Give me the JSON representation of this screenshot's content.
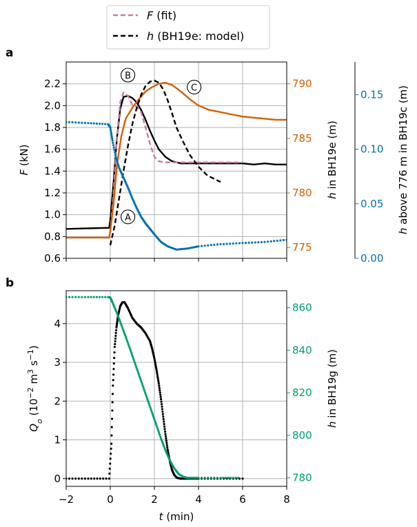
{
  "legend": {
    "items": [
      {
        "label_main": "F",
        "label_rest": " (fit)",
        "color": "#cc79a7",
        "style": "dashed"
      },
      {
        "label_main": "h",
        "label_rest": " (BH19e: model)",
        "color": "#000000",
        "style": "dashed"
      }
    ]
  },
  "colors": {
    "orange": "#d55e00",
    "blue": "#0072b2",
    "green": "#009e73",
    "pink": "#cc79a7",
    "black": "#000000",
    "grid": "#b0b0b0"
  },
  "chart_data": [
    {
      "panel_label": "a",
      "type": "line",
      "xlim": [
        -2,
        8
      ],
      "grid": true,
      "axes": {
        "left": {
          "label_main": "F",
          "label_rest": " (kN)",
          "ylim": [
            0.6,
            2.4
          ],
          "ticks": [
            "0.6",
            "0.8",
            "1.0",
            "1.2",
            "1.4",
            "1.6",
            "1.8",
            "2.0",
            "2.2"
          ]
        },
        "right1": {
          "label_main": "h",
          "label_rest": " in BH19e (m)",
          "ylim": [
            774,
            792
          ],
          "ticks": [
            "775",
            "780",
            "785",
            "790"
          ],
          "color": "#d55e00"
        },
        "right2": {
          "label_main": "h",
          "label_rest": " above 776 m in BH19c  (m)",
          "ylim": [
            0.0,
            0.18
          ],
          "ticks": [
            "0.00",
            "0.05",
            "0.10",
            "0.15"
          ],
          "color": "#0072b2"
        }
      },
      "annotations": [
        {
          "text": "A",
          "x": 0.8,
          "y": 0.98
        },
        {
          "text": "B",
          "x": 0.8,
          "y": 2.28
        },
        {
          "text": "C",
          "x": 3.8,
          "y": 2.17
        }
      ],
      "series": [
        {
          "name": "F",
          "axis": "left",
          "color": "#000000",
          "kind": "measured",
          "x": [
            -2,
            -0.05,
            0.0,
            0.15,
            0.3,
            0.45,
            0.6,
            0.8,
            1.0,
            1.2,
            1.4,
            1.6,
            1.8,
            2.0,
            2.2,
            2.5,
            2.8,
            3.2,
            3.6,
            4.0,
            4.5,
            5.0,
            5.5,
            6.0,
            6.5,
            7.0,
            7.5,
            8.0
          ],
          "y": [
            0.87,
            0.88,
            0.95,
            1.3,
            1.7,
            1.97,
            2.08,
            2.09,
            2.07,
            2.03,
            1.96,
            1.87,
            1.77,
            1.68,
            1.6,
            1.53,
            1.49,
            1.47,
            1.47,
            1.47,
            1.47,
            1.47,
            1.47,
            1.47,
            1.46,
            1.47,
            1.46,
            1.46
          ]
        },
        {
          "name": "F (fit)",
          "axis": "left",
          "color": "#cc79a7",
          "kind": "fit",
          "x": [
            0.0,
            0.15,
            0.3,
            0.45,
            0.6,
            0.8,
            1.0,
            1.2,
            1.4,
            1.6,
            1.8,
            2.0,
            2.2,
            2.5,
            3.0,
            3.5,
            4.0,
            5.0,
            6.0
          ],
          "y": [
            0.84,
            1.2,
            1.7,
            2.03,
            2.12,
            2.09,
            2.01,
            1.99,
            1.94,
            1.8,
            1.65,
            1.53,
            1.49,
            1.48,
            1.48,
            1.48,
            1.48,
            1.48,
            1.48
          ]
        },
        {
          "name": "h in BH19e",
          "axis": "right1",
          "color": "#d55e00",
          "kind": "measured",
          "x": [
            -2,
            -0.05,
            0.0,
            0.15,
            0.3,
            0.5,
            0.7,
            1.0,
            1.3,
            1.6,
            1.9,
            2.2,
            2.5,
            2.8,
            3.2,
            3.6,
            4.0,
            4.5,
            5.0,
            5.5,
            6.0,
            6.5,
            7.0,
            7.5,
            8.0
          ],
          "y": [
            775.9,
            775.9,
            776.5,
            779.0,
            782.5,
            785.2,
            786.8,
            787.8,
            788.6,
            789.3,
            789.7,
            790.0,
            790.1,
            789.9,
            789.3,
            788.6,
            788.0,
            787.6,
            787.4,
            787.2,
            787.0,
            786.9,
            786.8,
            786.7,
            786.7
          ]
        },
        {
          "name": "h (BH19e: model)",
          "axis": "right1",
          "color": "#000000",
          "kind": "model",
          "x": [
            0.0,
            0.2,
            0.4,
            0.6,
            0.8,
            1.0,
            1.2,
            1.4,
            1.6,
            1.8,
            2.0,
            2.2,
            2.4,
            2.6,
            2.8,
            3.0,
            3.3,
            3.6,
            4.0,
            4.4,
            4.8,
            5.0
          ],
          "y": [
            775.2,
            777.0,
            779.5,
            782.0,
            784.3,
            786.3,
            787.8,
            789.0,
            789.8,
            790.2,
            790.3,
            790.1,
            789.5,
            788.5,
            787.3,
            786.0,
            784.7,
            783.5,
            782.4,
            781.6,
            781.2,
            781.0
          ]
        },
        {
          "name": "h above 776 m in BH19c",
          "axis": "right2",
          "color": "#0072b2",
          "kind": "dots",
          "x": [
            -2,
            -1.0,
            -0.1,
            0.0,
            0.1,
            0.25,
            0.4,
            0.6,
            0.8,
            1.0,
            1.2,
            1.4,
            1.6,
            1.8,
            2.0,
            2.3,
            2.6,
            3.0,
            3.5,
            4.0,
            5.0,
            6.0,
            7.0,
            8.0
          ],
          "y": [
            0.125,
            0.124,
            0.123,
            0.12,
            0.108,
            0.093,
            0.083,
            0.074,
            0.065,
            0.055,
            0.046,
            0.038,
            0.032,
            0.027,
            0.022,
            0.015,
            0.011,
            0.008,
            0.009,
            0.011,
            0.013,
            0.014,
            0.015,
            0.017
          ]
        }
      ]
    },
    {
      "panel_label": "b",
      "type": "scatter",
      "xlim": [
        -2,
        8
      ],
      "grid": true,
      "xlabel_main": "t",
      "xlabel_rest": " (min)",
      "xticks": [
        "−2",
        "0",
        "2",
        "4",
        "6",
        "8"
      ],
      "axes": {
        "left": {
          "label_main": "Q",
          "label_sub": "o",
          "label_rest": " (10",
          "label_sup": "−2",
          "label_rest2": " m",
          "label_sup2": "3",
          "label_rest3": " s",
          "label_sup3": "−1",
          "label_end": ")",
          "ylim": [
            -0.2,
            4.85
          ],
          "ticks": [
            "0",
            "1",
            "2",
            "3",
            "4"
          ]
        },
        "right1": {
          "label_main": "h",
          "label_rest": " in BH19g (m)",
          "ylim": [
            776,
            868
          ],
          "ticks": [
            "780",
            "800",
            "820",
            "840",
            "860"
          ],
          "color": "#009e73"
        }
      },
      "series": [
        {
          "name": "Q_o",
          "axis": "left",
          "color": "#000000",
          "kind": "dots",
          "x": [
            -2,
            -1.0,
            -0.05,
            0.05,
            0.12,
            0.2,
            0.28,
            0.35,
            0.45,
            0.55,
            0.65,
            0.8,
            1.0,
            1.2,
            1.4,
            1.6,
            1.8,
            1.9,
            2.0,
            2.1,
            2.2,
            2.3,
            2.4,
            2.5,
            2.6,
            2.7,
            2.8,
            2.9,
            3.0,
            3.1,
            3.2,
            3.5,
            4.0,
            5.0,
            6.0
          ],
          "y": [
            0.0,
            0.0,
            0.0,
            0.9,
            2.4,
            3.4,
            3.9,
            4.2,
            4.45,
            4.55,
            4.55,
            4.4,
            4.15,
            4.0,
            3.9,
            3.75,
            3.55,
            3.35,
            3.1,
            2.8,
            2.45,
            2.05,
            1.6,
            1.15,
            0.75,
            0.45,
            0.22,
            0.1,
            0.03,
            0.01,
            0.0,
            0.0,
            0.0,
            0.0,
            0.0
          ]
        },
        {
          "name": "h in BH19g",
          "axis": "right1",
          "color": "#009e73",
          "kind": "dots",
          "x": [
            -2,
            -1.0,
            -0.1,
            0.0,
            0.1,
            0.3,
            0.5,
            0.7,
            0.9,
            1.1,
            1.3,
            1.5,
            1.7,
            1.9,
            2.1,
            2.3,
            2.5,
            2.7,
            2.9,
            3.1,
            3.3,
            3.5,
            4.0,
            5.0,
            5.8
          ],
          "y": [
            865,
            865,
            865,
            864.8,
            862.5,
            857.5,
            852,
            846.3,
            840.5,
            834.5,
            828.5,
            822.5,
            816.5,
            810.5,
            804.5,
            798.5,
            793,
            788.2,
            784.5,
            781.8,
            780.5,
            780.0,
            780.0,
            780.0,
            780.0
          ]
        }
      ]
    }
  ]
}
